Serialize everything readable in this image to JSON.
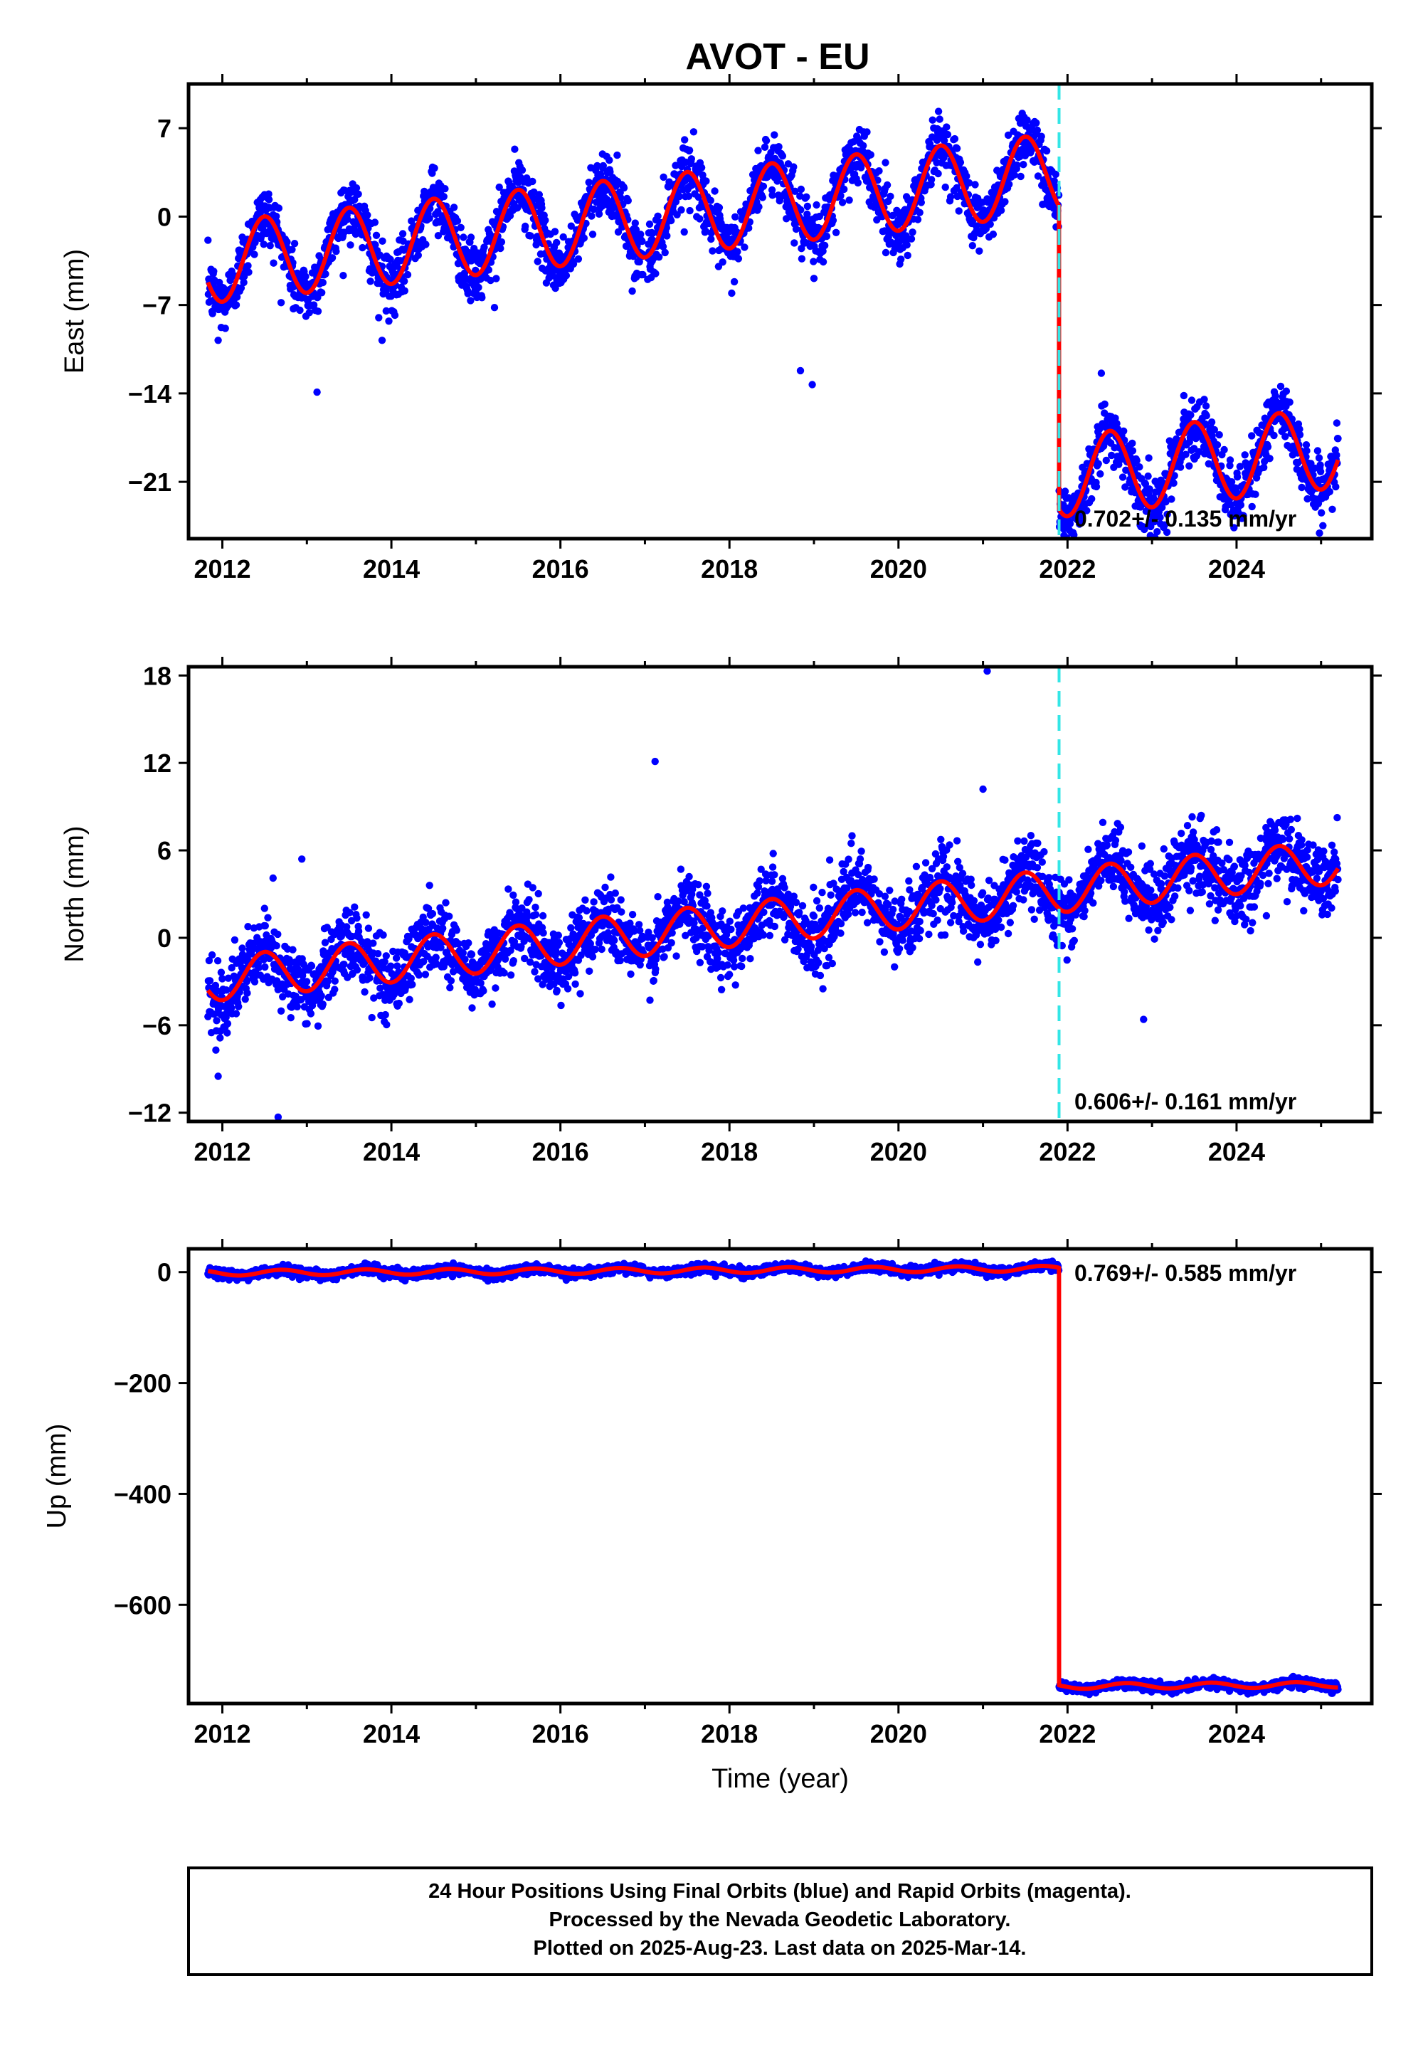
{
  "chart_data": {
    "type": "scatter",
    "title": "AVOT - EU",
    "xlabel": "Time (year)",
    "xlim": [
      2011.6,
      2025.6
    ],
    "x_ticks": [
      2012,
      2014,
      2016,
      2018,
      2020,
      2022,
      2024
    ],
    "x_tick_labels": [
      "2012",
      "2014",
      "2016",
      "2018",
      "2020",
      "2022",
      "2024"
    ],
    "first_epoch": 2011.83,
    "last_epoch": 2025.2,
    "equipment_change_epoch": 2021.9,
    "series": [
      {
        "name": "24 hour positions (Final Orbits)",
        "color": "#0000ff"
      },
      {
        "name": "Model fit",
        "color": "#ff0000"
      }
    ],
    "panels": [
      {
        "component": "East",
        "ylabel": "East (mm)",
        "ylim": [
          -25.5,
          10.5
        ],
        "y_ticks": [
          7,
          0,
          -7,
          -14,
          -21
        ],
        "y_tick_labels": [
          "7",
          "0",
          "−7",
          "−14",
          "−21"
        ],
        "rate_text": "0.702+/- 0.135 mm/yr",
        "rate_mm_per_yr": 0.702,
        "rate_uncertainty": 0.135,
        "seasonal_amplitude_mm": 3.2,
        "seasonal_phase_year": 2012.5,
        "offset_mm": -24.0,
        "noise_mm": 1.2,
        "fit_at_start_mm": -5.2,
        "outliers": [
          {
            "x": 2011.95,
            "y": -9.8
          },
          {
            "x": 2012.84,
            "y": -7.3
          },
          {
            "x": 2013.12,
            "y": -13.9
          },
          {
            "x": 2013.85,
            "y": -8.0
          },
          {
            "x": 2013.89,
            "y": -9.8
          },
          {
            "x": 2015.0,
            "y": -6.0
          },
          {
            "x": 2015.22,
            "y": -7.2
          },
          {
            "x": 2018.84,
            "y": -12.2
          },
          {
            "x": 2018.98,
            "y": -13.3
          },
          {
            "x": 2019.0,
            "y": -4.9
          },
          {
            "x": 2016.85,
            "y": -5.9
          },
          {
            "x": 2022.4,
            "y": -12.4
          }
        ]
      },
      {
        "component": "North",
        "ylabel": "North (mm)",
        "ylim": [
          -12.6,
          18.6
        ],
        "y_ticks": [
          18,
          12,
          6,
          0,
          -6,
          -12
        ],
        "y_tick_labels": [
          "18",
          "12",
          "6",
          "0",
          "−6",
          "−12"
        ],
        "rate_text": "0.606+/- 0.161 mm/yr",
        "rate_mm_per_yr": 0.606,
        "rate_uncertainty": 0.161,
        "seasonal_amplitude_mm": 1.5,
        "seasonal_phase_year": 2012.5,
        "offset_mm": 0,
        "noise_mm": 1.2,
        "fit_at_start_mm": -3.6,
        "outliers": [
          {
            "x": 2012.66,
            "y": -12.3
          },
          {
            "x": 2012.94,
            "y": 5.4
          },
          {
            "x": 2012.6,
            "y": 4.1
          },
          {
            "x": 2017.12,
            "y": 12.1
          },
          {
            "x": 2021.05,
            "y": 18.3
          },
          {
            "x": 2021.0,
            "y": 10.2
          },
          {
            "x": 2022.9,
            "y": -5.6
          },
          {
            "x": 2023.42,
            "y": 7.7
          },
          {
            "x": 2019.45,
            "y": 7.0
          },
          {
            "x": 2022.88,
            "y": 6.3
          },
          {
            "x": 2011.95,
            "y": -9.5
          },
          {
            "x": 2024.35,
            "y": 6.7
          }
        ]
      },
      {
        "component": "Up",
        "ylabel": "Up (mm)",
        "ylim": [
          -778,
          42
        ],
        "y_ticks": [
          0,
          -200,
          -400,
          -600
        ],
        "y_tick_labels": [
          "0",
          "−200",
          "−400",
          "−600"
        ],
        "rate_text": "0.769+/- 0.585 mm/yr",
        "rate_mm_per_yr": 0.769,
        "rate_uncertainty": 0.585,
        "seasonal_amplitude_mm": 5,
        "seasonal_phase_year": 2012.7,
        "offset_mm": -753,
        "noise_mm": 4,
        "fit_at_start_mm": 2,
        "outliers": []
      }
    ]
  },
  "footer": {
    "line1": "24 Hour Positions Using Final Orbits (blue) and Rapid Orbits (magenta).",
    "line2": "Processed by the Nevada Geodetic Laboratory.",
    "line3": "Plotted on 2025-Aug-23. Last data on 2025-Mar-14."
  }
}
